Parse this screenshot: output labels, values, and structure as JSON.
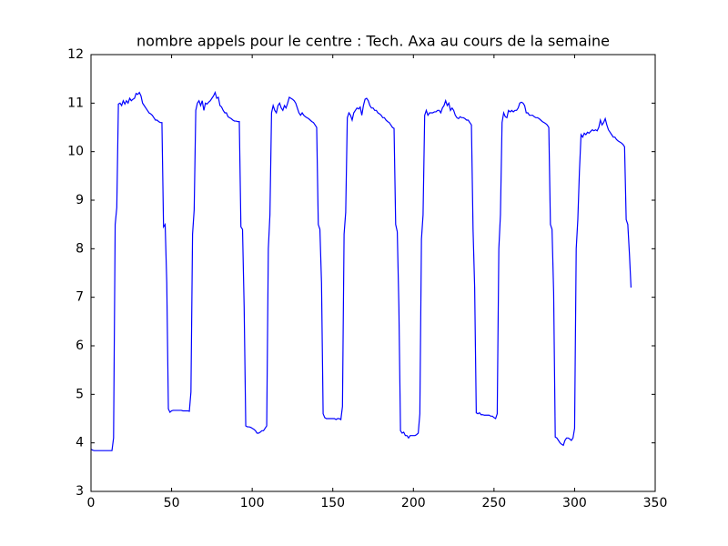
{
  "chart_data": {
    "type": "line",
    "title": "nombre appels pour le centre : Tech. Axa au cours de la semaine",
    "color": "#0000ff",
    "xlim": [
      0,
      350
    ],
    "xticks": [
      0,
      50,
      100,
      150,
      200,
      250,
      300,
      350
    ],
    "ylim": [
      3,
      12
    ],
    "yticks": [
      3,
      4,
      5,
      6,
      7,
      8,
      9,
      10,
      11,
      12
    ],
    "x": [
      0,
      1,
      2,
      3,
      4,
      5,
      6,
      7,
      8,
      9,
      10,
      11,
      12,
      13,
      14,
      15,
      16,
      17,
      18,
      19,
      20,
      21,
      22,
      23,
      24,
      25,
      26,
      27,
      28,
      29,
      30,
      31,
      32,
      33,
      34,
      35,
      36,
      37,
      38,
      39,
      40,
      41,
      42,
      43,
      44,
      45,
      46,
      47,
      48,
      49,
      50,
      51,
      52,
      53,
      54,
      55,
      56,
      57,
      58,
      59,
      60,
      61,
      62,
      63,
      64,
      65,
      66,
      67,
      68,
      69,
      70,
      71,
      72,
      73,
      74,
      75,
      76,
      77,
      78,
      79,
      80,
      81,
      82,
      83,
      84,
      85,
      86,
      87,
      88,
      89,
      90,
      91,
      92,
      93,
      94,
      95,
      96,
      97,
      98,
      99,
      100,
      101,
      102,
      103,
      104,
      105,
      106,
      107,
      108,
      109,
      110,
      111,
      112,
      113,
      114,
      115,
      116,
      117,
      118,
      119,
      120,
      121,
      122,
      123,
      124,
      125,
      126,
      127,
      128,
      129,
      130,
      131,
      132,
      133,
      134,
      135,
      136,
      137,
      138,
      139,
      140,
      141,
      142,
      143,
      144,
      145,
      146,
      147,
      148,
      149,
      150,
      151,
      152,
      153,
      154,
      155,
      156,
      157,
      158,
      159,
      160,
      161,
      162,
      163,
      164,
      165,
      166,
      167,
      168,
      169,
      170,
      171,
      172,
      173,
      174,
      175,
      176,
      177,
      178,
      179,
      180,
      181,
      182,
      183,
      184,
      185,
      186,
      187,
      188,
      189,
      190,
      191,
      192,
      193,
      194,
      195,
      196,
      197,
      198,
      199,
      200,
      201,
      202,
      203,
      204,
      205,
      206,
      207,
      208,
      209,
      210,
      211,
      212,
      213,
      214,
      215,
      216,
      217,
      218,
      219,
      220,
      221,
      222,
      223,
      224,
      225,
      226,
      227,
      228,
      229,
      230,
      231,
      232,
      233,
      234,
      235,
      236,
      237,
      238,
      239,
      240,
      241,
      242,
      243,
      244,
      245,
      246,
      247,
      248,
      249,
      250,
      251,
      252,
      253,
      254,
      255,
      256,
      257,
      258,
      259,
      260,
      261,
      262,
      263,
      264,
      265,
      266,
      267,
      268,
      269,
      270,
      271,
      272,
      273,
      274,
      275,
      276,
      277,
      278,
      279,
      280,
      281,
      282,
      283,
      284,
      285,
      286,
      287,
      288,
      289,
      290,
      291,
      292,
      293,
      294,
      295,
      296,
      297,
      298,
      299,
      300,
      301,
      302,
      303,
      304,
      305,
      306,
      307,
      308,
      309,
      310,
      311,
      312,
      313,
      314,
      315,
      316,
      317,
      318,
      319,
      320,
      321,
      322,
      323,
      324,
      325,
      326,
      327,
      328,
      329,
      330,
      331,
      332,
      333,
      334,
      335
    ],
    "values": [
      3.87,
      3.85,
      3.84,
      3.84,
      3.84,
      3.84,
      3.84,
      3.84,
      3.84,
      3.84,
      3.84,
      3.84,
      3.84,
      3.84,
      4.1,
      8.5,
      8.85,
      10.98,
      11.0,
      10.95,
      11.05,
      10.98,
      11.05,
      11.0,
      11.1,
      11.05,
      11.08,
      11.1,
      11.2,
      11.18,
      11.22,
      11.15,
      11.0,
      10.95,
      10.9,
      10.85,
      10.8,
      10.78,
      10.75,
      10.7,
      10.65,
      10.65,
      10.62,
      10.6,
      10.6,
      8.45,
      8.5,
      7.3,
      4.7,
      4.63,
      4.66,
      4.67,
      4.67,
      4.67,
      4.67,
      4.67,
      4.67,
      4.66,
      4.66,
      4.66,
      4.66,
      4.65,
      5.05,
      8.3,
      8.8,
      10.85,
      11.0,
      11.05,
      10.95,
      11.05,
      10.85,
      11.0,
      10.98,
      11.02,
      11.05,
      11.1,
      11.15,
      11.22,
      11.1,
      11.12,
      10.95,
      10.92,
      10.85,
      10.8,
      10.8,
      10.72,
      10.7,
      10.68,
      10.65,
      10.63,
      10.63,
      10.62,
      10.62,
      8.45,
      8.4,
      6.8,
      4.35,
      4.33,
      4.33,
      4.32,
      4.3,
      4.28,
      4.25,
      4.2,
      4.2,
      4.22,
      4.25,
      4.25,
      4.3,
      4.35,
      8.0,
      8.7,
      10.8,
      10.95,
      10.85,
      10.8,
      10.95,
      11.0,
      10.9,
      10.85,
      10.95,
      10.9,
      11.0,
      11.12,
      11.1,
      11.08,
      11.05,
      11.0,
      10.9,
      10.8,
      10.75,
      10.8,
      10.75,
      10.72,
      10.7,
      10.68,
      10.65,
      10.62,
      10.6,
      10.55,
      10.5,
      8.5,
      8.4,
      7.3,
      4.6,
      4.52,
      4.5,
      4.5,
      4.5,
      4.5,
      4.5,
      4.5,
      4.48,
      4.5,
      4.5,
      4.48,
      4.75,
      8.3,
      8.75,
      10.7,
      10.8,
      10.75,
      10.65,
      10.8,
      10.85,
      10.9,
      10.88,
      10.92,
      10.75,
      10.95,
      11.08,
      11.1,
      11.05,
      10.95,
      10.9,
      10.9,
      10.85,
      10.85,
      10.8,
      10.78,
      10.75,
      10.7,
      10.7,
      10.65,
      10.62,
      10.6,
      10.55,
      10.5,
      10.48,
      8.5,
      8.35,
      6.8,
      4.25,
      4.2,
      4.22,
      4.15,
      4.15,
      4.1,
      4.15,
      4.15,
      4.15,
      4.15,
      4.17,
      4.2,
      4.6,
      8.2,
      8.7,
      10.75,
      10.85,
      10.75,
      10.8,
      10.8,
      10.8,
      10.82,
      10.82,
      10.85,
      10.85,
      10.8,
      10.9,
      10.95,
      11.05,
      10.95,
      11.0,
      10.85,
      10.9,
      10.85,
      10.75,
      10.7,
      10.68,
      10.72,
      10.7,
      10.7,
      10.68,
      10.65,
      10.65,
      10.6,
      10.55,
      8.4,
      7.2,
      4.62,
      4.6,
      4.62,
      4.58,
      4.58,
      4.57,
      4.57,
      4.57,
      4.57,
      4.55,
      4.55,
      4.52,
      4.5,
      4.6,
      8.0,
      8.7,
      10.6,
      10.8,
      10.72,
      10.7,
      10.85,
      10.82,
      10.85,
      10.82,
      10.85,
      10.85,
      10.9,
      11.0,
      11.02,
      11.0,
      10.95,
      10.8,
      10.8,
      10.75,
      10.75,
      10.75,
      10.72,
      10.7,
      10.7,
      10.68,
      10.65,
      10.62,
      10.6,
      10.58,
      10.55,
      10.5,
      8.5,
      8.4,
      7.1,
      4.12,
      4.1,
      4.05,
      4.0,
      3.97,
      3.95,
      4.05,
      4.1,
      4.1,
      4.08,
      4.05,
      4.1,
      4.3,
      8.0,
      8.6,
      9.6,
      10.35,
      10.3,
      10.38,
      10.35,
      10.4,
      10.38,
      10.42,
      10.45,
      10.43,
      10.45,
      10.43,
      10.5,
      10.65,
      10.55,
      10.6,
      10.68,
      10.55,
      10.45,
      10.4,
      10.35,
      10.3,
      10.3,
      10.25,
      10.22,
      10.2,
      10.18,
      10.15,
      10.1,
      8.6,
      8.5,
      7.9,
      7.2
    ]
  }
}
